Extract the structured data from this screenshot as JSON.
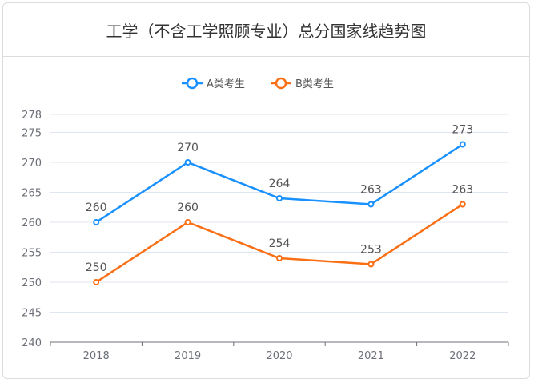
{
  "chart_data": {
    "type": "line",
    "title": "工学（不含工学照顾专业）总分国家线趋势图",
    "categories": [
      "2018",
      "2019",
      "2020",
      "2021",
      "2022"
    ],
    "series": [
      {
        "name": "A类考生",
        "values": [
          260,
          270,
          264,
          263,
          273
        ],
        "color": "#1890ff"
      },
      {
        "name": "B类考生",
        "values": [
          250,
          260,
          254,
          253,
          263
        ],
        "color": "#fa6e14"
      }
    ],
    "ylim": [
      240,
      278
    ],
    "yticks": [
      240,
      245,
      250,
      255,
      260,
      265,
      270,
      275,
      278
    ],
    "grid": true,
    "legend": "top-center",
    "xlabel": "",
    "ylabel": ""
  }
}
